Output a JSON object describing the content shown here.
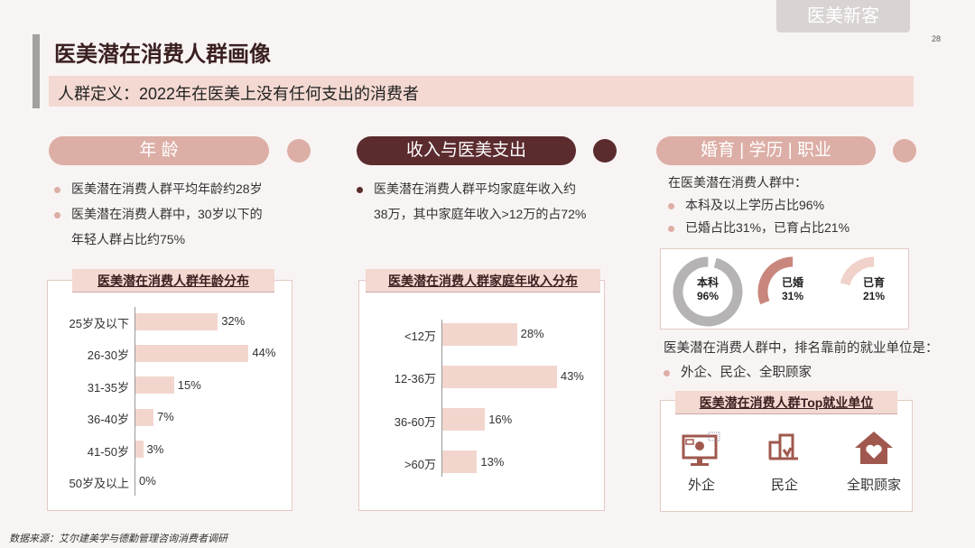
{
  "header": {
    "tag": "医美新客",
    "page_number": "28",
    "title": "医美潜在消费人群画像",
    "definition": "人群定义：2022年在医美上没有任何支出的消费者"
  },
  "age": {
    "pill": "年 龄",
    "bullets": [
      "医美潜在消费人群平均年龄约28岁",
      "医美潜在消费人群中，30岁以下的",
      "年轻人群占比约75%"
    ]
  },
  "income": {
    "pill": "收入与医美支出",
    "bullets": [
      "医美潜在消费人群平均家庭年收入约",
      "38万，其中家庭年收入>12万的占72%"
    ]
  },
  "edu": {
    "pill": "婚育 | 学历 | 职业",
    "intro": "在医美潜在消费人群中：",
    "bullets": [
      "本科及以上学历占比96%",
      "已婚占比31%，已育占比21%"
    ],
    "rings": [
      {
        "label": "本科",
        "value": "96%",
        "pct": 96,
        "color": "#b5b3b3"
      },
      {
        "label": "已婚",
        "value": "31%",
        "pct": 31,
        "color": "#c9867c"
      },
      {
        "label": "已育",
        "value": "21%",
        "pct": 21,
        "color": "#f0d2ca"
      }
    ],
    "jobs_intro": "医美潜在消费人群中，排名靠前的就业单位是：",
    "jobs_bullet": "外企、民企、全职顾家",
    "jobs_title": "医美潜在消费人群Top就业单位",
    "jobs": [
      "外企",
      "民企",
      "全职顾家"
    ]
  },
  "colors": {
    "accent_light": "#dcaea5",
    "accent_dark": "#5b2b2e",
    "bar": "#f2d6ce",
    "icon": "#a0584e"
  },
  "chart_data": [
    {
      "type": "bar",
      "orientation": "horizontal",
      "title": "医美潜在消费人群年龄分布",
      "categories": [
        "25岁及以下",
        "26-30岁",
        "31-35岁",
        "36-40岁",
        "41-50岁",
        "50岁及以上"
      ],
      "values": [
        32,
        44,
        15,
        7,
        3,
        0
      ],
      "labels": [
        "32%",
        "44%",
        "15%",
        "7%",
        "3%",
        "0%"
      ],
      "unit": "%"
    },
    {
      "type": "bar",
      "orientation": "horizontal",
      "title": "医美潜在消费人群家庭年收入分布",
      "categories": [
        "<12万",
        "12-36万",
        "36-60万",
        ">60万"
      ],
      "values": [
        28,
        43,
        16,
        13
      ],
      "labels": [
        "28%",
        "43%",
        "16%",
        "13%"
      ],
      "unit": "%"
    }
  ],
  "footer": {
    "source": "数据来源：艾尔建美学与德勤管理咨询消费者调研"
  }
}
